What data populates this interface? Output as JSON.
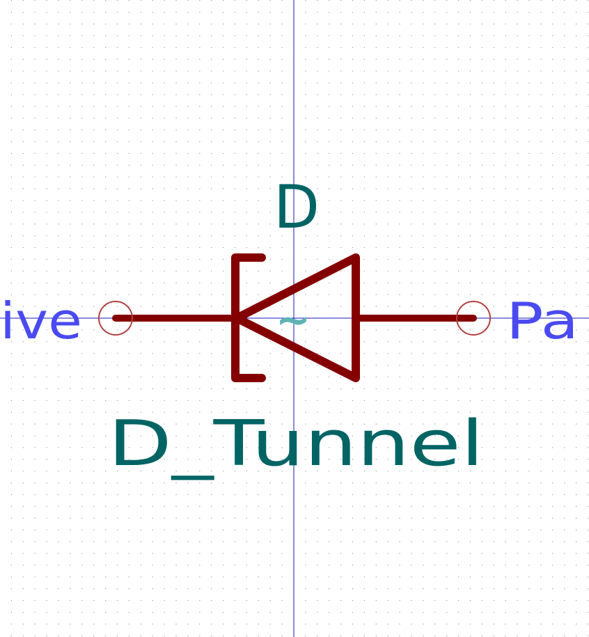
{
  "symbol": {
    "reference": "D",
    "value": "D_Tunnel",
    "hidden_field_marker": "~"
  },
  "pins": {
    "left_label": "ive",
    "right_label": "Pa"
  },
  "colors": {
    "background": "#ffffff",
    "grid_dot": "#a0a0a0",
    "axis": "#1a1ab8",
    "body": "#840000",
    "field_text": "#006464",
    "hidden_field": "#5fb3b3",
    "pin_name": "#4a4af0",
    "pin_circle": "#b04040"
  }
}
